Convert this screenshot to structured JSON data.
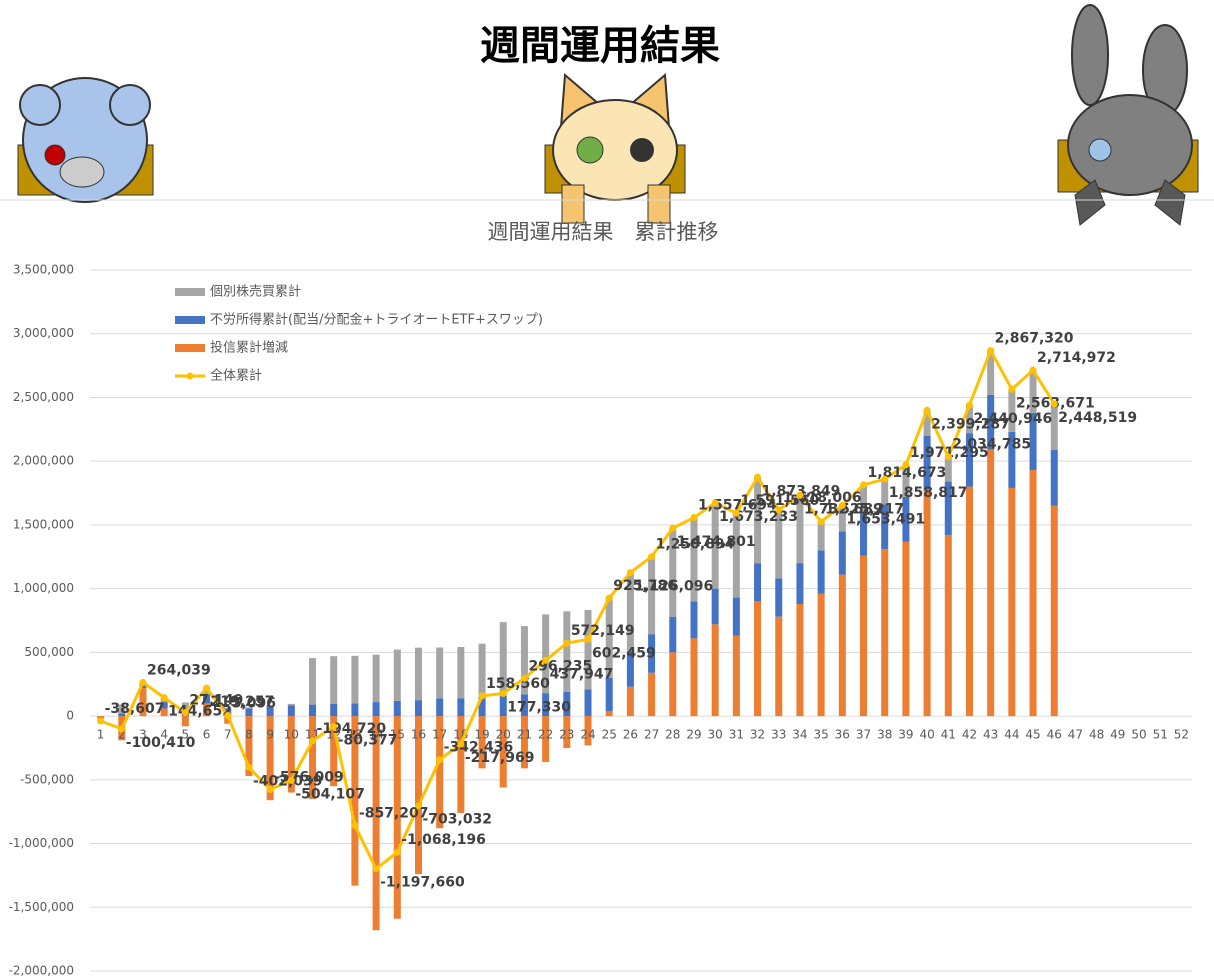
{
  "header": {
    "title": "週間運用結果"
  },
  "chart_data": {
    "type": "stacked-bar-line",
    "title": "週間運用結果　累計推移",
    "categories": [
      "1",
      "2",
      "3",
      "4",
      "5",
      "6",
      "7",
      "8",
      "9",
      "10",
      "11",
      "12",
      "13",
      "14",
      "15",
      "16",
      "17",
      "18",
      "19",
      "20",
      "21",
      "22",
      "23",
      "24",
      "25",
      "26",
      "27",
      "28",
      "29",
      "30",
      "31",
      "32",
      "33",
      "34",
      "35",
      "36",
      "37",
      "38",
      "39",
      "40",
      "41",
      "42",
      "43",
      "44",
      "45",
      "46",
      "47",
      "48",
      "49",
      "50",
      "51",
      "52"
    ],
    "series": [
      {
        "name": "個別株売買累計",
        "color": "#a5a5a5",
        "kind": "bar",
        "values": [
          0,
          70000,
          14000,
          35000,
          57000,
          49000,
          5000,
          8000,
          4000,
          11000,
          365000,
          375000,
          373000,
          372000,
          402000,
          412000,
          398000,
          402000,
          418000,
          577000,
          536000,
          618000,
          632000,
          622000,
          626000,
          616000,
          611000,
          695000,
          658000,
          673000,
          661000,
          674000,
          538000,
          533000,
          225000,
          203000,
          215000,
          199000,
          251000,
          199000,
          195000,
          221000,
          347000,
          334000,
          335000,
          359000,
          null,
          null,
          null,
          null,
          null,
          null
        ]
      },
      {
        "name": "不労所得累計(配当/分配金+トライオートETF+スワップ)",
        "color": "#4472c4",
        "kind": "bar",
        "values": [
          0,
          20000,
          30000,
          50000,
          50000,
          70000,
          60000,
          60000,
          80000,
          85000,
          90000,
          95000,
          100000,
          110000,
          120000,
          125000,
          140000,
          140000,
          150000,
          160000,
          170000,
          180000,
          190000,
          210000,
          260000,
          280000,
          300000,
          280000,
          290000,
          280000,
          300000,
          300000,
          300000,
          320000,
          340000,
          340000,
          340000,
          350000,
          350000,
          420000,
          420000,
          420000,
          430000,
          440000,
          450000,
          440000,
          null,
          null,
          null,
          null,
          null,
          null
        ]
      },
      {
        "name": "投信累計増減",
        "color": "#ed7d31",
        "kind": "bar",
        "values": [
          -20000,
          -190000,
          220000,
          60000,
          -80000,
          100000,
          -60000,
          -470000,
          -660000,
          -600000,
          -650000,
          -550000,
          -1330000,
          -1680000,
          -1590000,
          -1240000,
          -880000,
          -760000,
          -410000,
          -560000,
          -410000,
          -360000,
          -250000,
          -230000,
          40000,
          230000,
          340000,
          500000,
          610000,
          720000,
          630000,
          900000,
          780000,
          880000,
          960000,
          1110000,
          1260000,
          1310000,
          1370000,
          1780000,
          1420000,
          1800000,
          2090000,
          1790000,
          1930000,
          1650000,
          null,
          null,
          null,
          null,
          null,
          null
        ]
      },
      {
        "name": "全体累計",
        "color": "#ffc000",
        "kind": "line",
        "values": [
          -38607,
          -100410,
          264039,
          144652,
          27149,
          219257,
          5096,
          -402039,
          -576009,
          -504107,
          -194720,
          -80377,
          -857207,
          -1197660,
          -1068196,
          -703032,
          -342436,
          -217969,
          158560,
          177330,
          296235,
          437947,
          572149,
          602459,
          925786,
          1126096,
          1250894,
          1474801,
          1557694,
          1673233,
          1591560,
          1873849,
          1618006,
          1732689,
          1525217,
          1653491,
          1814673,
          1858817,
          1971295,
          2399287,
          2034785,
          2440946,
          2867320,
          2563671,
          2714972,
          2448519,
          null,
          null,
          null,
          null,
          null,
          null
        ],
        "value_labels": [
          "-38,607",
          "-100,410",
          "264,039",
          "144,652",
          "27,149",
          "219,257",
          "5,096",
          "-402,039",
          "-576,009",
          "-504,107",
          "-194,720",
          "-80,377",
          "-857,207",
          "-1,197,660",
          "-1,068,196",
          "-703,032",
          "-342,436",
          "-217,969",
          "158,560",
          "177,330",
          "296,235",
          "437,947",
          "572,149",
          "602,459",
          "925,786",
          "1,126,096",
          "1,250,894",
          "1,474,801",
          "1,557,694",
          "1,673,233",
          "1,591,560",
          "1,873,849",
          "1,618,006",
          "1,732,689",
          "1,525,217",
          "1,653,491",
          "1,814,673",
          "1,858,817",
          "1,971,295",
          "2,399,287",
          "2,034,785",
          "2,440,946",
          "2,867,320",
          "2,563,671",
          "2,714,972",
          "2,448,519",
          null,
          null,
          null,
          null,
          null,
          null
        ]
      }
    ],
    "ylim": [
      -2000000,
      3500000
    ],
    "yticks": [
      {
        "value": -2000000,
        "label": "-2,000,000"
      },
      {
        "value": -1500000,
        "label": "-1,500,000"
      },
      {
        "value": -1000000,
        "label": "-1,000,000"
      },
      {
        "value": -500000,
        "label": "-500,000"
      },
      0,
      {
        "value": 500000,
        "label": "500,000"
      },
      {
        "value": 1000000,
        "label": "1,000,000"
      },
      {
        "value": 1500000,
        "label": "1,500,000"
      },
      {
        "value": 2000000,
        "label": "2,000,000"
      },
      {
        "value": 2500000,
        "label": "2,500,000"
      },
      {
        "value": 3000000,
        "label": "3,000,000"
      },
      {
        "value": 3500000,
        "label": "3,500,000"
      }
    ],
    "grid": true,
    "legend": "top-left"
  }
}
